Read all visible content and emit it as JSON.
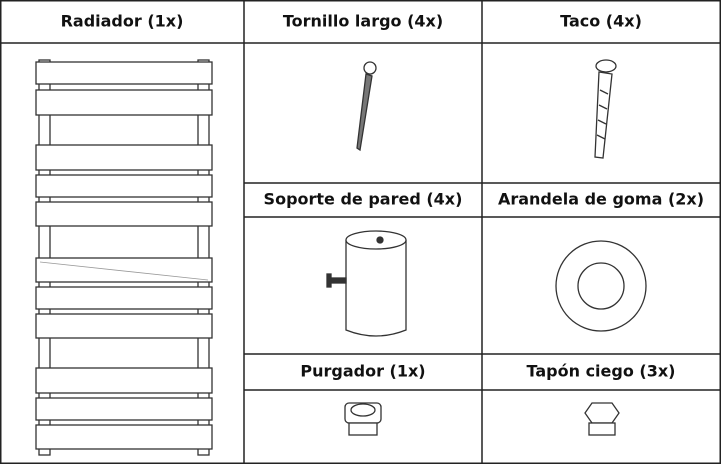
{
  "items": [
    {
      "label": "Radiador (1x)"
    },
    {
      "label": "Tornillo largo (4x)"
    },
    {
      "label": "Taco (4x)"
    },
    {
      "label": "Soporte de pared (4x)"
    },
    {
      "label": "Arandela de goma (2x)"
    },
    {
      "label": "Purgador (1x)"
    },
    {
      "label": "Tapón ciego (3x)"
    }
  ]
}
